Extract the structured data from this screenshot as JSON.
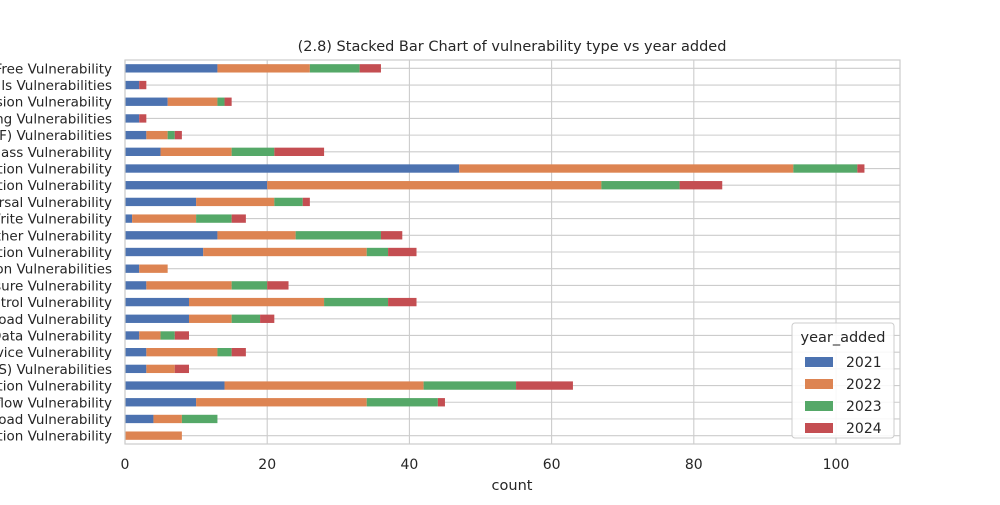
{
  "chart_data": {
    "type": "bar",
    "orientation": "horizontal",
    "stacked": true,
    "title": "(2.8) Stacked Bar Chart of  vulnerability type vs year added",
    "xlabel": "count",
    "ylabel": "",
    "xlim": [
      0,
      109
    ],
    "xticks": [
      0,
      20,
      40,
      60,
      80,
      100
    ],
    "grid": true,
    "legend": {
      "title": "year_added",
      "placement": "lower-right"
    },
    "categories": [
      "Free Vulnerability",
      "ls Vulnerabilities",
      "sion Vulnerability",
      "ng Vulnerabilities",
      "F) Vulnerabilities",
      "ass Vulnerability",
      "tion Vulnerability",
      "tion Vulnerability",
      "rsal Vulnerability",
      "Write Vulnerability",
      "ther Vulnerability",
      "tion Vulnerability",
      "on Vulnerabilities",
      "sure Vulnerability",
      "ntrol Vulnerability",
      "oad Vulnerability",
      "Data Vulnerability",
      "vice Vulnerability",
      "S) Vulnerabilities",
      "tion Vulnerability",
      "flow Vulnerability",
      "oad Vulnerability",
      "tion Vulnerability"
    ],
    "series": [
      {
        "name": "2021",
        "color": "#4c72b0",
        "values": [
          13,
          2,
          6,
          2,
          3,
          5,
          47,
          20,
          10,
          1,
          13,
          11,
          2,
          3,
          9,
          9,
          2,
          3,
          3,
          14,
          10,
          4,
          0
        ]
      },
      {
        "name": "2022",
        "color": "#dd8452",
        "values": [
          13,
          0,
          7,
          0,
          3,
          10,
          47,
          47,
          11,
          9,
          11,
          23,
          4,
          12,
          19,
          6,
          3,
          10,
          4,
          28,
          24,
          4,
          8
        ]
      },
      {
        "name": "2023",
        "color": "#55a868",
        "values": [
          7,
          0,
          1,
          0,
          1,
          6,
          9,
          11,
          4,
          5,
          12,
          3,
          0,
          5,
          9,
          4,
          2,
          2,
          0,
          13,
          10,
          5,
          0
        ]
      },
      {
        "name": "2024",
        "color": "#c44e52",
        "values": [
          3,
          1,
          1,
          1,
          1,
          7,
          1,
          6,
          1,
          2,
          3,
          4,
          0,
          3,
          4,
          2,
          2,
          2,
          2,
          8,
          1,
          0,
          0
        ]
      }
    ]
  }
}
